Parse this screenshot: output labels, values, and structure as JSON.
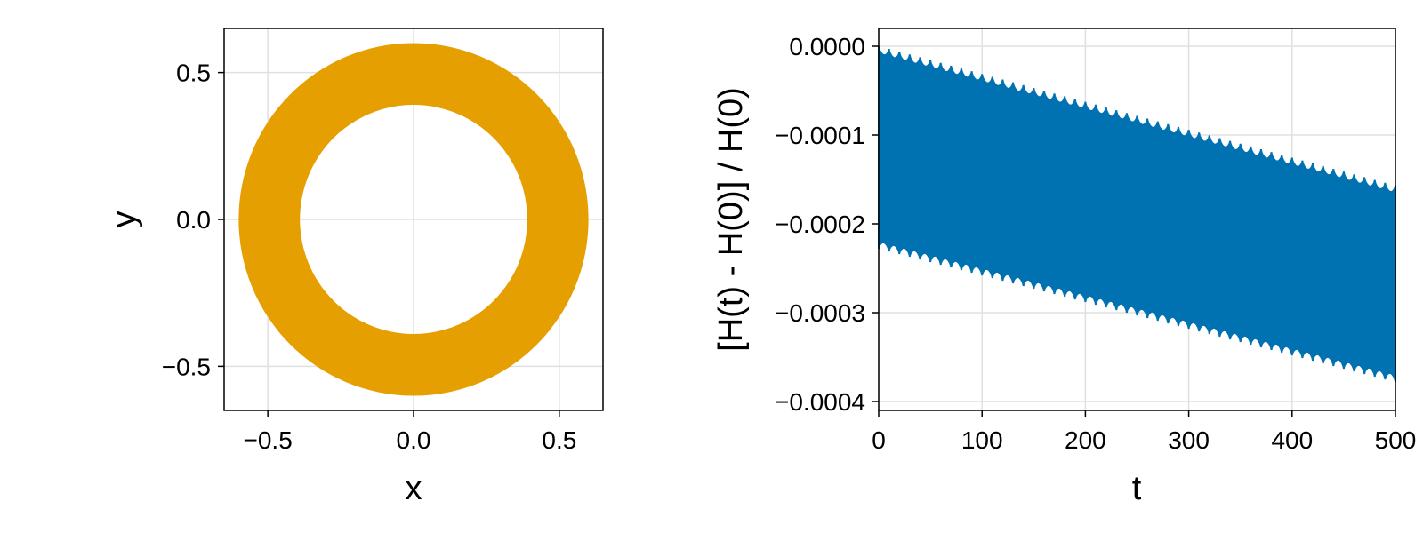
{
  "chart_data": [
    {
      "type": "scatter",
      "description_role": "phase-space orbit",
      "xlabel": "x",
      "ylabel": "y",
      "xlim": [
        -0.65,
        0.65
      ],
      "ylim": [
        -0.65,
        0.65
      ],
      "xticks": [
        -0.5,
        0.0,
        0.5
      ],
      "xtick_labels": [
        "−0.5",
        "0.0",
        "0.5"
      ],
      "yticks": [
        -0.5,
        0.0,
        0.5
      ],
      "ytick_labels": [
        "−0.5",
        "0.0",
        "0.5"
      ],
      "grid": true,
      "color": "#e69f00",
      "series": [
        {
          "shape": "annulus",
          "center": [
            0.0,
            0.0
          ],
          "inner_radius": 0.39,
          "outer_radius": 0.6
        }
      ]
    },
    {
      "type": "line",
      "xlabel": "t",
      "ylabel": "[H(t) - H(0)] / H(0)",
      "xlim": [
        0,
        500
      ],
      "ylim": [
        -0.00041,
        2e-05
      ],
      "xticks": [
        0,
        100,
        200,
        300,
        400,
        500
      ],
      "xtick_labels": [
        "0",
        "100",
        "200",
        "300",
        "400",
        "500"
      ],
      "yticks": [
        0.0,
        -0.0001,
        -0.0002,
        -0.0003,
        -0.0004
      ],
      "ytick_labels": [
        "0.0000",
        "−0.0001",
        "−0.0002",
        "−0.0003",
        "−0.0004"
      ],
      "grid": true,
      "color": "#0072b2",
      "series": [
        {
          "shape": "oscillating band",
          "upper_envelope": {
            "x": [
              0,
              500
            ],
            "y": [
              0.0,
              -0.000157
            ]
          },
          "lower_envelope": {
            "x": [
              0,
              500
            ],
            "y": [
              -0.000228,
              -0.000378
            ]
          },
          "oscillation_period": 10
        }
      ]
    }
  ]
}
